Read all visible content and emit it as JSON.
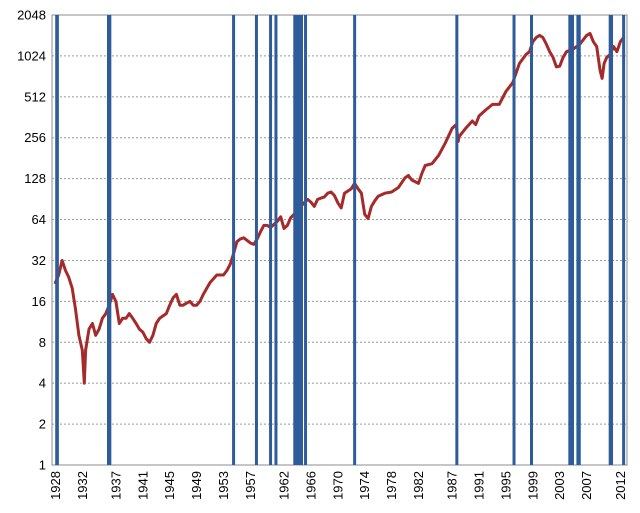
{
  "chart_data": {
    "type": "line",
    "title": "",
    "xlabel": "",
    "ylabel": "",
    "y_scale": "log2",
    "ylim": [
      1,
      2048
    ],
    "xlim": [
      1927.5,
      2013.0
    ],
    "grid": true,
    "y_ticks": [
      "1",
      "2",
      "4",
      "8",
      "16",
      "32",
      "64",
      "128",
      "256",
      "512",
      "1024",
      "2048"
    ],
    "x_ticks": [
      "1928",
      "1932",
      "1937",
      "1941",
      "1945",
      "1949",
      "1953",
      "1957",
      "1962",
      "1966",
      "1970",
      "1974",
      "1978",
      "1982",
      "1987",
      "1991",
      "1995",
      "1999",
      "2003",
      "2007",
      "2012"
    ],
    "series": [
      {
        "color": "#a52a2a",
        "x": [
          1928.0,
          1928.5,
          1929.0,
          1929.5,
          1930.0,
          1930.5,
          1931.0,
          1931.5,
          1932.0,
          1932.3,
          1932.5,
          1933.0,
          1933.5,
          1934.0,
          1934.5,
          1935.0,
          1935.5,
          1936.0,
          1936.5,
          1937.0,
          1937.5,
          1938.0,
          1938.5,
          1939.0,
          1939.5,
          1940.0,
          1940.5,
          1941.0,
          1941.5,
          1942.0,
          1942.5,
          1943.0,
          1943.5,
          1944.0,
          1944.5,
          1945.0,
          1945.5,
          1946.0,
          1946.5,
          1947.0,
          1947.5,
          1948.0,
          1948.5,
          1949.0,
          1949.5,
          1950.0,
          1951.0,
          1952.0,
          1953.0,
          1953.5,
          1954.0,
          1954.5,
          1955.0,
          1955.5,
          1956.0,
          1956.5,
          1957.0,
          1957.5,
          1958.0,
          1958.5,
          1959.0,
          1959.5,
          1960.0,
          1961.0,
          1961.5,
          1962.0,
          1962.5,
          1963.0,
          1963.5,
          1964.0,
          1964.5,
          1965.0,
          1965.5,
          1966.0,
          1966.5,
          1967.0,
          1967.5,
          1968.0,
          1968.5,
          1969.0,
          1969.5,
          1970.0,
          1970.5,
          1971.0,
          1972.0,
          1972.5,
          1973.0,
          1973.5,
          1974.0,
          1974.5,
          1975.0,
          1975.5,
          1976.0,
          1977.0,
          1978.0,
          1979.0,
          1980.0,
          1980.5,
          1981.0,
          1982.0,
          1982.5,
          1983.0,
          1984.0,
          1985.0,
          1986.0,
          1987.0,
          1987.6,
          1987.9,
          1988.0,
          1989.0,
          1990.0,
          1990.5,
          1991.0,
          1992.0,
          1993.0,
          1994.0,
          1995.0,
          1996.0,
          1997.0,
          1998.0,
          1998.5,
          1999.0,
          1999.5,
          2000.0,
          2000.5,
          2001.0,
          2001.5,
          2002.0,
          2002.5,
          2003.0,
          2003.5,
          2004.0,
          2005.0,
          2006.0,
          2007.0,
          2007.5,
          2008.0,
          2008.5,
          2009.0,
          2009.3,
          2009.6,
          2010.0,
          2010.5,
          2011.0,
          2011.5,
          2012.0,
          2012.5
        ],
        "values": [
          22,
          25,
          32,
          27,
          24,
          20,
          14,
          9,
          7,
          4,
          7,
          10,
          11,
          9,
          10,
          12,
          13,
          15,
          18,
          16,
          11,
          12,
          12,
          13,
          12,
          11,
          10,
          9.5,
          8.5,
          8,
          9,
          11,
          12,
          12.5,
          13,
          15,
          17,
          18,
          15,
          15,
          15.5,
          16,
          15,
          15,
          16,
          18,
          22,
          25,
          25,
          27,
          30,
          36,
          44,
          46,
          47,
          45,
          43,
          42,
          46,
          52,
          58,
          58,
          56,
          62,
          67,
          55,
          58,
          66,
          70,
          76,
          80,
          85,
          90,
          86,
          80,
          90,
          92,
          94,
          100,
          102,
          96,
          85,
          78,
          100,
          108,
          118,
          108,
          100,
          70,
          65,
          80,
          88,
          95,
          100,
          102,
          110,
          130,
          135,
          125,
          118,
          140,
          160,
          165,
          190,
          235,
          300,
          320,
          240,
          260,
          300,
          340,
          320,
          370,
          410,
          450,
          450,
          560,
          650,
          900,
          1050,
          1100,
          1300,
          1400,
          1450,
          1400,
          1250,
          1100,
          1000,
          850,
          860,
          1000,
          1100,
          1150,
          1250,
          1450,
          1500,
          1300,
          1200,
          800,
          700,
          900,
          1000,
          1050,
          1200,
          1100,
          1300,
          1400
        ]
      }
    ],
    "event_lines": {
      "color": "#2e5c9a",
      "x": [
        1928.2,
        1928.3,
        1935.9,
        1936.0,
        1936.1,
        1954.5,
        1957.9,
        1960.0,
        1960.8,
        1963.6,
        1964.0,
        1964.3,
        1964.6,
        1965.2,
        1972.5,
        1987.7,
        1996.2,
        1998.8,
        2004.5,
        2004.7,
        2004.9,
        2005.7,
        2005.9,
        2010.5,
        2010.7,
        2012.5
      ]
    }
  }
}
